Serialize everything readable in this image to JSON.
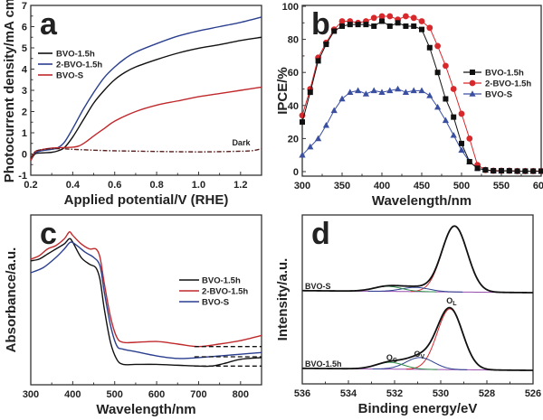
{
  "chart_data": [
    {
      "id": "a",
      "type": "line",
      "panel_letter": "a",
      "xlabel": "Applied potential/V (RHE)",
      "ylabel": "Photocurrent density/mA cm",
      "ylabel_superscript": "-2",
      "xlim": [
        0.2,
        1.3
      ],
      "ylim": [
        -1,
        7
      ],
      "xticks": [
        0.2,
        0.4,
        0.6,
        0.8,
        1.0,
        1.2
      ],
      "xtick_labels": [
        "0.2",
        "0.4",
        "0.6",
        "0.8",
        "1.0",
        "1.2"
      ],
      "yticks": [
        -1,
        0,
        1,
        2,
        3,
        4,
        5,
        6,
        7
      ],
      "ytick_labels": [
        "-1",
        "0",
        "1",
        "2",
        "3",
        "4",
        "5",
        "6",
        "7"
      ],
      "legend_position": "upper-left",
      "annotations": [
        {
          "text": "Dark",
          "x": 1.22,
          "y": 0.5
        }
      ],
      "series": [
        {
          "name": "BVO-1.5h",
          "color": "#111111",
          "style": "solid",
          "x": [
            0.2,
            0.22,
            0.25,
            0.3,
            0.33,
            0.36,
            0.4,
            0.45,
            0.5,
            0.55,
            0.6,
            0.65,
            0.7,
            0.8,
            0.9,
            1.0,
            1.1,
            1.2,
            1.3
          ],
          "y": [
            -0.3,
            0.0,
            0.05,
            0.08,
            0.15,
            0.3,
            0.8,
            1.6,
            2.4,
            3.0,
            3.5,
            3.85,
            4.1,
            4.45,
            4.75,
            4.98,
            5.15,
            5.35,
            5.5
          ]
        },
        {
          "name": "2-BVO-1.5h",
          "color": "#2b3f8f",
          "style": "solid",
          "x": [
            0.2,
            0.22,
            0.25,
            0.3,
            0.33,
            0.36,
            0.4,
            0.45,
            0.5,
            0.55,
            0.6,
            0.65,
            0.7,
            0.8,
            0.9,
            1.0,
            1.1,
            1.2,
            1.3
          ],
          "y": [
            -0.2,
            0.05,
            0.15,
            0.22,
            0.3,
            0.55,
            1.2,
            2.1,
            2.9,
            3.6,
            4.1,
            4.5,
            4.8,
            5.2,
            5.55,
            5.8,
            6.0,
            6.2,
            6.45
          ]
        },
        {
          "name": "BVO-S",
          "color": "#c0292c",
          "style": "solid",
          "x": [
            0.2,
            0.22,
            0.25,
            0.3,
            0.35,
            0.4,
            0.43,
            0.46,
            0.5,
            0.55,
            0.6,
            0.7,
            0.8,
            0.9,
            1.0,
            1.1,
            1.2,
            1.3
          ],
          "y": [
            -0.3,
            0.1,
            0.2,
            0.28,
            0.3,
            0.32,
            0.38,
            0.55,
            0.85,
            1.2,
            1.55,
            2.0,
            2.3,
            2.5,
            2.7,
            2.85,
            3.0,
            3.15
          ]
        },
        {
          "name": "Dark",
          "color": "#5a1f1f",
          "style": "dash-dot",
          "in_legend": false,
          "x": [
            0.2,
            0.22,
            0.25,
            0.3,
            0.35,
            0.4,
            0.5,
            0.6,
            0.8,
            1.0,
            1.15,
            1.25,
            1.3
          ],
          "y": [
            -0.2,
            0.1,
            0.2,
            0.25,
            0.25,
            0.22,
            0.18,
            0.15,
            0.12,
            0.1,
            0.12,
            0.15,
            0.25
          ]
        }
      ]
    },
    {
      "id": "b",
      "type": "line",
      "panel_letter": "b",
      "xlabel": "Wavelength/nm",
      "ylabel": "IPCE/%",
      "xlim": [
        300,
        600
      ],
      "ylim": [
        0,
        100
      ],
      "xticks": [
        300,
        350,
        400,
        450,
        500,
        550,
        600
      ],
      "xtick_labels": [
        "300",
        "350",
        "400",
        "450",
        "500",
        "550",
        "600"
      ],
      "yticks": [
        0,
        20,
        40,
        60,
        80,
        100
      ],
      "ytick_labels": [
        "0",
        "20",
        "40",
        "60",
        "80",
        "100"
      ],
      "legend_position": "right",
      "x": [
        300,
        310,
        320,
        330,
        340,
        350,
        360,
        370,
        380,
        390,
        400,
        410,
        420,
        430,
        440,
        450,
        460,
        470,
        480,
        490,
        500,
        510,
        520,
        530,
        540,
        550,
        560,
        570,
        580,
        590,
        600
      ],
      "series": [
        {
          "name": "BVO-1.5h",
          "color": "#111111",
          "marker": "square",
          "values": [
            30,
            48,
            67,
            77,
            85,
            88,
            89,
            89,
            89,
            88,
            91,
            88,
            90,
            88,
            88,
            86,
            75,
            60,
            44,
            33,
            17,
            6,
            2,
            1,
            0.5,
            0.5,
            0.5,
            0.3,
            0.3,
            0.3,
            0.3
          ]
        },
        {
          "name": "2-BVO-1.5h",
          "color": "#d7282c",
          "marker": "circle",
          "values": [
            34,
            50,
            69,
            78,
            86,
            91,
            91,
            90,
            91,
            93,
            94,
            94,
            92,
            94,
            93,
            91,
            87,
            76,
            64,
            50,
            35,
            20,
            4,
            1,
            0.5,
            0.5,
            0.5,
            0.3,
            0.3,
            0.3,
            0.3
          ]
        },
        {
          "name": "BVO-S",
          "color": "#3a4fa0",
          "marker": "triangle",
          "values": [
            10,
            15,
            20,
            28,
            37,
            44,
            48,
            49,
            47,
            49,
            48,
            49,
            50,
            48,
            49,
            49,
            46,
            39,
            31,
            22,
            13,
            6,
            2,
            1,
            0.5,
            0.5,
            0.5,
            0.3,
            0.3,
            0.3,
            0.3
          ]
        }
      ]
    },
    {
      "id": "c",
      "type": "line",
      "panel_letter": "c",
      "xlabel": "Wavelength/nm",
      "ylabel": "Absorbance/a.u.",
      "xlim": [
        300,
        850
      ],
      "ylim": [
        0,
        1
      ],
      "xticks": [
        300,
        400,
        500,
        600,
        700,
        800
      ],
      "xtick_labels": [
        "300",
        "400",
        "500",
        "600",
        "700",
        "800"
      ],
      "minor_xticks": [
        350,
        450,
        550,
        650,
        750
      ],
      "yticks": [],
      "legend_position": "right",
      "series": [
        {
          "name": "BVO-1.5h",
          "color": "#111111",
          "x": [
            300,
            320,
            340,
            360,
            380,
            392,
            400,
            420,
            440,
            455,
            465,
            475,
            490,
            505,
            520,
            550,
            600,
            650,
            700,
            730,
            760,
            800,
            850
          ],
          "y": [
            0.73,
            0.74,
            0.77,
            0.8,
            0.83,
            0.86,
            0.84,
            0.75,
            0.71,
            0.69,
            0.62,
            0.45,
            0.25,
            0.15,
            0.12,
            0.12,
            0.12,
            0.115,
            0.11,
            0.11,
            0.125,
            0.15,
            0.16
          ]
        },
        {
          "name": "2-BVO-1.5h",
          "color": "#c0292c",
          "x": [
            300,
            320,
            340,
            360,
            380,
            392,
            400,
            420,
            440,
            455,
            465,
            475,
            490,
            505,
            520,
            550,
            600,
            650,
            700,
            750,
            800,
            850
          ],
          "y": [
            0.74,
            0.76,
            0.8,
            0.82,
            0.86,
            0.9,
            0.88,
            0.83,
            0.8,
            0.8,
            0.75,
            0.6,
            0.4,
            0.28,
            0.25,
            0.25,
            0.255,
            0.24,
            0.225,
            0.24,
            0.26,
            0.29
          ]
        },
        {
          "name": "BVO-S",
          "color": "#2b3f8f",
          "x": [
            300,
            330,
            360,
            380,
            395,
            410,
            430,
            450,
            465,
            475,
            490,
            505,
            520,
            550,
            600,
            650,
            700,
            750,
            800,
            850
          ],
          "y": [
            0.66,
            0.69,
            0.75,
            0.8,
            0.84,
            0.82,
            0.78,
            0.75,
            0.7,
            0.55,
            0.35,
            0.23,
            0.21,
            0.195,
            0.17,
            0.155,
            0.16,
            0.17,
            0.18,
            0.19
          ]
        }
      ],
      "baselines": [
        {
          "x": [
            690,
            850
          ],
          "y": 0.225
        },
        {
          "x": [
            690,
            850
          ],
          "y": 0.165
        },
        {
          "x": [
            690,
            850
          ],
          "y": 0.11
        }
      ]
    },
    {
      "id": "d",
      "type": "line",
      "panel_letter": "d",
      "xlabel": "Binding energy/eV",
      "ylabel": "Intensity/a.u.",
      "xlim": [
        536,
        526
      ],
      "ylim": [
        0,
        1
      ],
      "xticks": [
        536,
        534,
        532,
        530,
        528,
        526
      ],
      "xtick_labels": [
        "536",
        "534",
        "532",
        "530",
        "528",
        "526"
      ],
      "minor_xticks": [
        535,
        533,
        531,
        529,
        527
      ],
      "yticks": [],
      "sample_labels": [
        "BVO-S",
        "BVO-1.5h"
      ],
      "peak_labels": [
        {
          "text": "O",
          "sub": "L",
          "x": 529.6,
          "sample": "BVO-1.5h"
        },
        {
          "text": "O",
          "sub": "V",
          "x": 531.0,
          "sample": "BVO-1.5h"
        },
        {
          "text": "O",
          "sub": "C",
          "x": 532.2,
          "sample": "BVO-1.5h"
        }
      ],
      "fits": [
        {
          "sample": "BVO-S",
          "offset": 0.54,
          "components": [
            {
              "name": "O_L",
              "center": 529.4,
              "amp": 0.39,
              "width": 0.55,
              "color": "#d7282c"
            },
            {
              "name": "O_V",
              "center": 531.1,
              "amp": 0.025,
              "width": 0.6,
              "color": "#2b3f8f"
            },
            {
              "name": "O_C",
              "center": 532.3,
              "amp": 0.03,
              "width": 0.6,
              "color": "#2f8f4e"
            }
          ],
          "background_color": "#9a4fb0",
          "envelope_color": "#111111"
        },
        {
          "sample": "BVO-1.5h",
          "offset": 0.08,
          "components": [
            {
              "name": "O_L",
              "center": 529.6,
              "amp": 0.36,
              "width": 0.55,
              "color": "#d7282c"
            },
            {
              "name": "O_V",
              "center": 530.9,
              "amp": 0.07,
              "width": 0.6,
              "color": "#2b3f8f"
            },
            {
              "name": "O_C",
              "center": 532.2,
              "amp": 0.04,
              "width": 0.6,
              "color": "#2f8f4e"
            }
          ],
          "background_color": "#9a4fb0",
          "envelope_color": "#111111"
        }
      ]
    }
  ]
}
